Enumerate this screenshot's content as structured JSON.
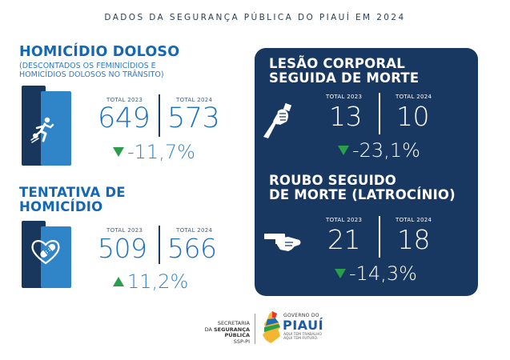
{
  "header": {
    "title": "DADOS DA SEGURANÇA PÚBLICA DO PIAUÍ EM 2024"
  },
  "homicidio": {
    "title": "HOMICÍDIO DOLOSO",
    "sub_line1": "(DESCONTADOS OS FEMINICÍDIOS E",
    "sub_line2": "HOMICÍDIOS DOLOSOS NO TRÂNSITO)",
    "label_2023": "TOTAL 2023",
    "label_2024": "TOTAL 2024",
    "value_2023": "649",
    "value_2024": "573",
    "change": "-11,7%",
    "direction": "down",
    "icon": "running-figure-icon"
  },
  "tentativa": {
    "title_line1": "TENTATIVA DE",
    "title_line2": "HOMICÍDIO",
    "label_2023": "TOTAL 2023",
    "label_2024": "TOTAL 2024",
    "value_2023": "509",
    "value_2024": "566",
    "change": "11,2%",
    "direction": "up",
    "icon": "bandaged-heart-icon"
  },
  "lesao": {
    "title_line1": "LESÃO CORPORAL",
    "title_line2": "SEGUIDA DE MORTE",
    "label_2023": "TOTAL 2023",
    "label_2024": "TOTAL 2024",
    "value_2023": "13",
    "value_2024": "10",
    "change": "-23,1%",
    "direction": "down",
    "icon": "knife-hand-icon"
  },
  "roubo": {
    "title_line1": "ROUBO SEGUIDO",
    "title_line2": "DE MORTE (LATROCÍNIO)",
    "label_2023": "TOTAL 2023",
    "label_2024": "TOTAL 2024",
    "value_2023": "21",
    "value_2024": "18",
    "change": "-14,3%",
    "direction": "down",
    "icon": "gun-hand-icon"
  },
  "footer": {
    "secretaria_line1": "SECRETARIA",
    "secretaria_line2_pre": "DA ",
    "secretaria_line2_bold": "SEGURANÇA PÚBLICA",
    "secretaria_line3": "SSP-PI",
    "gov_line1": "GOVERNO DO",
    "gov_name": "PIAUÍ",
    "gov_tagline1": "AQUI TEM TRABALHO",
    "gov_tagline2": "AQUI TEM FUTURO."
  },
  "colors": {
    "panel": "#183862",
    "accent_blue": "#1467b3",
    "light_blue": "#2f85c8",
    "dark_bar": "#19365d",
    "arrow_green": "#2a9e4a"
  }
}
